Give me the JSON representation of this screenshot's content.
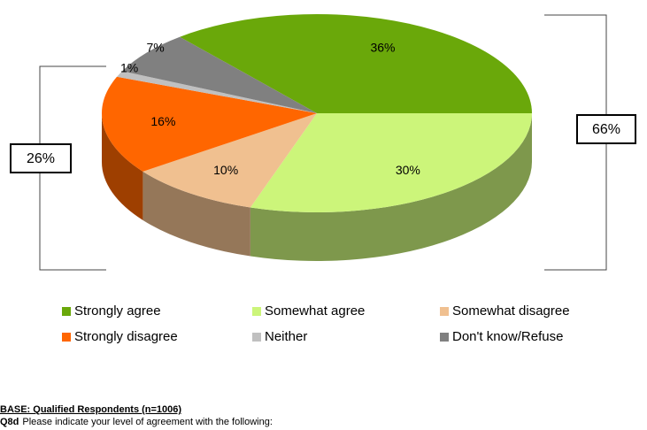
{
  "chart_data": {
    "type": "pie3d",
    "categories": [
      "Strongly agree",
      "Somewhat agree",
      "Somewhat disagree",
      "Strongly disagree",
      "Neither",
      "Don't know/Refuse"
    ],
    "values": [
      36,
      30,
      10,
      16,
      1,
      7
    ],
    "value_labels": [
      "36%",
      "30%",
      "10%",
      "16%",
      "1%",
      "7%"
    ],
    "colors": [
      "#6aa80a",
      "#ccf57a",
      "#f0c090",
      "#ff6600",
      "#c0c0c0",
      "#808080"
    ],
    "annotations": [
      "26%",
      "66%"
    ],
    "footnote": {
      "base": "BASE: Qualified Respondents (n=1006)",
      "question_id": "Q8d",
      "question": "Please indicate your level of agreement with the following:"
    }
  }
}
